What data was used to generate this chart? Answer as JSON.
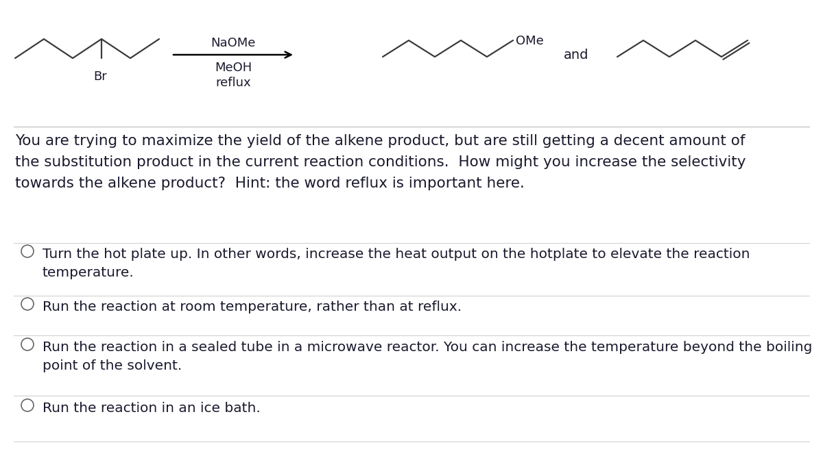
{
  "bg_color": "#ffffff",
  "text_color": "#1a1a2e",
  "line_color": "#3a3a3a",
  "question_text": "You are trying to maximize the yield of the alkene product, but are still getting a decent amount of\nthe substitution product in the current reaction conditions.  How might you increase the selectivity\ntowards the alkene product?  Hint: the word reflux is important here.",
  "options": [
    "Turn the hot plate up. In other words, increase the heat output on the hotplate to elevate the reaction\ntemperature.",
    "Run the reaction at room temperature, rather than at reflux.",
    "Run the reaction in a sealed tube in a microwave reactor. You can increase the temperature beyond the boiling\npoint of the solvent.",
    "Run the reaction in an ice bath."
  ],
  "reagent_label1": "NaOMe",
  "reagent_label2": "MeOH",
  "reagent_label3": "reflux",
  "label_br": "Br",
  "label_ome": "OMe",
  "label_and": "and",
  "font_size_reagent": 13,
  "font_size_question": 15.5,
  "font_size_options": 14.5,
  "font_size_label": 13,
  "font_size_and": 14
}
